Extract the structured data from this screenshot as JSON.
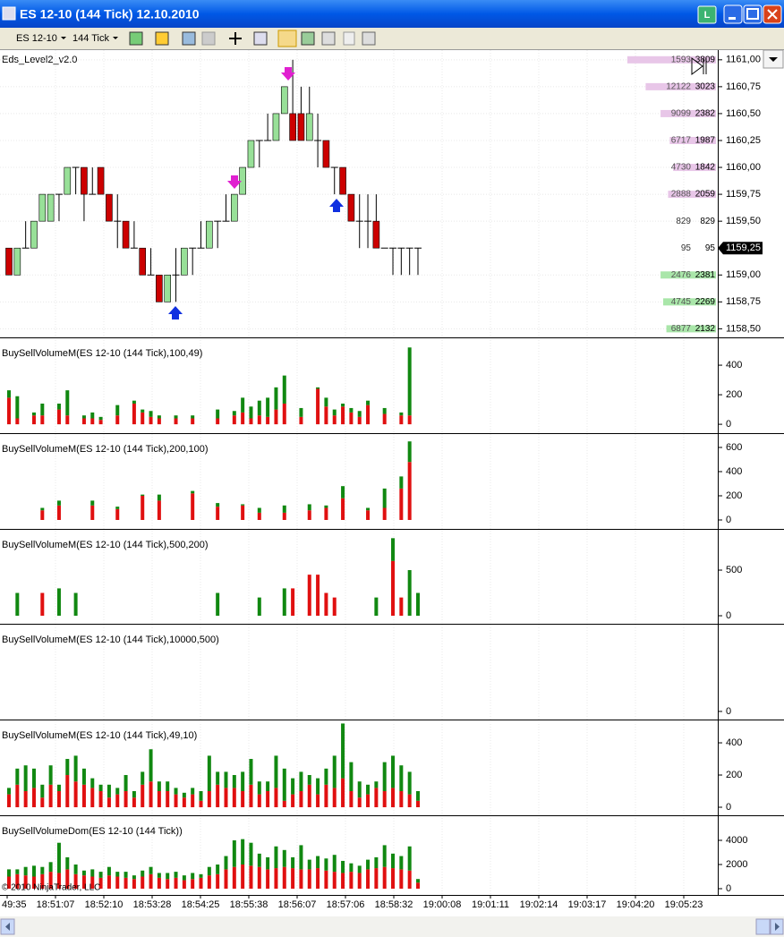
{
  "window": {
    "title": "ES 12-10 (144 Tick)  12.10.2010",
    "badge": "L"
  },
  "toolbar": {
    "instrument": "ES 12-10",
    "period": "144 Tick"
  },
  "price_panel": {
    "label": "Eds_Level2_v2.0",
    "ylim": [
      1158.42,
      1161.09
    ],
    "yticks": [
      {
        "value": 1161,
        "label": "1161,00"
      },
      {
        "value": 1160.75,
        "label": "1160,75"
      },
      {
        "value": 1160.5,
        "label": "1160,50"
      },
      {
        "value": 1160.25,
        "label": "1160,25"
      },
      {
        "value": 1160,
        "label": "1160,00"
      },
      {
        "value": 1159.75,
        "label": "1159,75"
      },
      {
        "value": 1159.5,
        "label": "1159,50"
      },
      {
        "value": 1159,
        "label": "1159,00"
      },
      {
        "value": 1158.75,
        "label": "1158,75"
      },
      {
        "value": 1158.5,
        "label": "1158,50"
      }
    ],
    "last": {
      "value": 1159.25,
      "label": "1159,25"
    },
    "open": [
      1159.25,
      1159,
      1159.25,
      1159.25,
      1159.5,
      1159.5,
      1159.75,
      1159.75,
      1160,
      1160,
      1159.75,
      1160,
      1159.75,
      1159.5,
      1159.5,
      1159.25,
      1159.25,
      1159,
      1159,
      1158.75,
      1159,
      1159,
      1159.25,
      1159.25,
      1159.25,
      1159.5,
      1159.5,
      1159.5,
      1159.75,
      1160,
      1160.25,
      1160.25,
      1160.25,
      1160.5,
      1160.5,
      1160.5,
      1160.25,
      1160.25,
      1160.25,
      1160,
      1160,
      1159.75,
      1159.5,
      1159.5,
      1159.5,
      1159.25,
      1159.25,
      1159.25,
      1159.25,
      1159.25
    ],
    "high": [
      1159.25,
      1159.25,
      1159.5,
      1159.5,
      1159.75,
      1159.75,
      1159.75,
      1160,
      1160,
      1160,
      1160,
      1160,
      1159.75,
      1159.75,
      1159.5,
      1159.5,
      1159.25,
      1159.25,
      1159,
      1159,
      1159.25,
      1159.25,
      1159.25,
      1159.5,
      1159.5,
      1159.5,
      1159.75,
      1159.75,
      1160,
      1160.25,
      1160.25,
      1160.5,
      1160.5,
      1160.75,
      1161,
      1160.75,
      1160.75,
      1160.5,
      1160.25,
      1160,
      1160,
      1159.75,
      1159.75,
      1159.75,
      1159.75,
      1159.25,
      1159.25,
      1159.25,
      1159.25,
      1159.25
    ],
    "low": [
      1159,
      1159,
      1159.25,
      1159.25,
      1159.5,
      1159.5,
      1159.5,
      1159.75,
      1159.75,
      1159.5,
      1159.75,
      1159.75,
      1159.5,
      1159.25,
      1159.25,
      1159.25,
      1159,
      1159,
      1158.75,
      1158.75,
      1158.75,
      1159,
      1159,
      1159.25,
      1159.25,
      1159.25,
      1159.5,
      1159.5,
      1159.75,
      1160,
      1160,
      1160.25,
      1160.25,
      1160.5,
      1160.25,
      1160.25,
      1160.25,
      1160,
      1160,
      1159.75,
      1159.75,
      1159.5,
      1159.25,
      1159.25,
      1159.25,
      1159.25,
      1159,
      1159,
      1159,
      1159
    ],
    "close": [
      1159,
      1159.25,
      1159.25,
      1159.5,
      1159.75,
      1159.75,
      1159.75,
      1160,
      1160,
      1159.75,
      1159.75,
      1159.75,
      1159.5,
      1159.5,
      1159.25,
      1159.25,
      1159,
      1159,
      1158.75,
      1159,
      1159,
      1159.25,
      1159.25,
      1159.25,
      1159.5,
      1159.5,
      1159.5,
      1159.75,
      1160,
      1160.25,
      1160.25,
      1160.25,
      1160.5,
      1160.75,
      1160.25,
      1160.25,
      1160.5,
      1160.25,
      1160,
      1160,
      1159.75,
      1159.5,
      1159.5,
      1159.5,
      1159.25,
      1159.25,
      1159.25,
      1159.25,
      1159.25,
      1159.25
    ],
    "ladder": [
      {
        "left": 1593,
        "right": 3809,
        "side": "ask"
      },
      {
        "left": 12122,
        "right": 3023,
        "side": "ask"
      },
      {
        "left": 9099,
        "right": 2382,
        "side": "ask"
      },
      {
        "left": 6717,
        "right": 1987,
        "side": "ask"
      },
      {
        "left": 4730,
        "right": 1842,
        "side": "ask"
      },
      {
        "left": 2888,
        "right": 2059,
        "side": "ask"
      },
      {
        "left": 829,
        "right": 829,
        "side": "last"
      },
      {
        "left": 95,
        "right": 95,
        "side": "last"
      },
      {
        "left": 2476,
        "right": 2381,
        "side": "bid"
      },
      {
        "left": 4745,
        "right": 2269,
        "side": "bid"
      },
      {
        "left": 6877,
        "right": 2132,
        "side": "bid"
      }
    ]
  },
  "volume_panels": [
    {
      "label": "BuySellVolumeM(ES 12-10 (144 Tick),100,49)",
      "ylim": [
        -60,
        570
      ],
      "yticks": [
        0,
        200,
        400
      ],
      "sell": [
        180,
        40,
        null,
        60,
        60,
        null,
        100,
        60,
        null,
        40,
        40,
        30,
        null,
        60,
        null,
        140,
        80,
        50,
        40,
        null,
        40,
        null,
        40,
        null,
        null,
        40,
        null,
        60,
        80,
        40,
        60,
        50,
        100,
        140,
        null,
        50,
        null,
        240,
        120,
        60,
        120,
        80,
        50,
        130,
        null,
        70,
        null,
        60,
        60,
        null
      ],
      "buy": [
        50,
        150,
        null,
        20,
        80,
        null,
        40,
        170,
        null,
        20,
        40,
        20,
        null,
        70,
        null,
        20,
        20,
        40,
        20,
        null,
        20,
        null,
        20,
        null,
        null,
        60,
        null,
        30,
        100,
        80,
        100,
        130,
        150,
        190,
        null,
        60,
        null,
        10,
        60,
        40,
        20,
        30,
        40,
        30,
        null,
        40,
        null,
        20,
        460,
        null
      ]
    },
    {
      "label": "BuySellVolumeM(ES 12-10 (144 Tick),200,100)",
      "ylim": [
        -74,
        696
      ],
      "yticks": [
        0,
        200,
        400,
        600
      ],
      "sell": [
        null,
        null,
        null,
        null,
        80,
        null,
        120,
        null,
        null,
        null,
        120,
        null,
        null,
        90,
        null,
        null,
        200,
        null,
        160,
        null,
        null,
        null,
        220,
        null,
        null,
        110,
        null,
        null,
        120,
        null,
        60,
        null,
        null,
        60,
        null,
        null,
        80,
        null,
        100,
        null,
        180,
        null,
        null,
        80,
        null,
        100,
        null,
        260,
        480,
        null
      ],
      "buy": [
        null,
        null,
        null,
        null,
        20,
        null,
        40,
        null,
        null,
        null,
        40,
        null,
        null,
        20,
        null,
        null,
        10,
        null,
        50,
        null,
        null,
        null,
        20,
        null,
        null,
        30,
        null,
        null,
        10,
        null,
        40,
        null,
        null,
        60,
        null,
        null,
        50,
        null,
        20,
        null,
        100,
        null,
        null,
        20,
        null,
        160,
        null,
        100,
        170,
        null
      ]
    },
    {
      "label": "BuySellVolumeM(ES 12-10 (144 Tick),500,200)",
      "ylim": [
        -88,
        922
      ],
      "yticks": [
        0,
        500
      ],
      "sell": [
        null,
        0,
        null,
        null,
        250,
        null,
        0,
        null,
        0,
        null,
        null,
        null,
        null,
        null,
        null,
        null,
        null,
        null,
        null,
        null,
        null,
        null,
        null,
        null,
        null,
        0,
        null,
        null,
        null,
        null,
        0,
        null,
        null,
        0,
        300,
        null,
        450,
        450,
        250,
        200,
        null,
        null,
        null,
        null,
        0,
        null,
        600,
        200,
        0,
        0
      ],
      "buy": [
        null,
        250,
        null,
        null,
        0,
        null,
        300,
        null,
        250,
        null,
        null,
        null,
        null,
        null,
        null,
        null,
        null,
        null,
        null,
        null,
        null,
        null,
        null,
        null,
        null,
        250,
        null,
        null,
        null,
        null,
        200,
        null,
        null,
        300,
        0,
        null,
        0,
        0,
        0,
        0,
        null,
        null,
        null,
        null,
        200,
        null,
        250,
        0,
        500,
        250
      ]
    },
    {
      "label": "BuySellVolumeM(ES 12-10 (144 Tick),10000,500)",
      "ylim": [
        -88,
        922
      ],
      "yticks": [
        0
      ]
    },
    {
      "label": "BuySellVolumeM(ES 12-10 (144 Tick),49,10)",
      "ylim": [
        -50,
        528
      ],
      "yticks": [
        0,
        200,
        400
      ],
      "sell": [
        80,
        140,
        100,
        120,
        60,
        140,
        100,
        200,
        160,
        140,
        120,
        100,
        60,
        80,
        100,
        60,
        140,
        160,
        100,
        100,
        80,
        60,
        80,
        40,
        100,
        140,
        120,
        120,
        100,
        140,
        80,
        100,
        120,
        40,
        80,
        100,
        140,
        80,
        140,
        120,
        180,
        100,
        60,
        80,
        120,
        100,
        120,
        100,
        80,
        40
      ],
      "buy": [
        40,
        100,
        160,
        120,
        80,
        120,
        40,
        100,
        160,
        100,
        60,
        40,
        80,
        40,
        100,
        40,
        80,
        200,
        60,
        60,
        40,
        30,
        40,
        60,
        220,
        80,
        100,
        80,
        120,
        160,
        80,
        60,
        200,
        200,
        100,
        120,
        60,
        100,
        100,
        200,
        340,
        180,
        100,
        60,
        40,
        180,
        200,
        160,
        140,
        60
      ]
    },
    {
      "label": "BuySellVolumeDom(ES 12-10 (144 Tick))",
      "ylim": [
        -518,
        5852
      ],
      "yticks": [
        0,
        2000,
        4000
      ],
      "sell": [
        1000,
        1200,
        1100,
        1000,
        1200,
        1400,
        1300,
        1600,
        1200,
        1100,
        1000,
        900,
        1100,
        1000,
        900,
        800,
        1000,
        1200,
        900,
        800,
        900,
        700,
        800,
        900,
        1100,
        1200,
        1600,
        1800,
        2000,
        1900,
        1800,
        1600,
        1700,
        1800,
        1700,
        1600,
        1600,
        1700,
        1500,
        1400,
        1300,
        1400,
        1300,
        1600,
        1700,
        1800,
        1700,
        1600,
        1500,
        500
      ],
      "buy": [
        600,
        400,
        700,
        900,
        600,
        800,
        2500,
        1000,
        800,
        400,
        600,
        500,
        700,
        400,
        500,
        300,
        500,
        600,
        400,
        500,
        500,
        400,
        500,
        300,
        700,
        800,
        1100,
        2200,
        2100,
        1900,
        1100,
        1000,
        1800,
        1400,
        900,
        2000,
        800,
        1000,
        1000,
        1400,
        1000,
        700,
        600,
        800,
        900,
        1800,
        1200,
        1100,
        2000,
        300
      ]
    }
  ],
  "time_axis": [
    "49:35",
    "18:51:07",
    "18:52:10",
    "18:53:28",
    "18:54:25",
    "18:55:38",
    "18:56:07",
    "18:57:06",
    "18:58:32",
    "19:00:08",
    "19:01:11",
    "19:02:14",
    "19:03:17",
    "19:04:20",
    "19:05:23"
  ],
  "copyright": "© 2010 NinjaTrader, LLC"
}
